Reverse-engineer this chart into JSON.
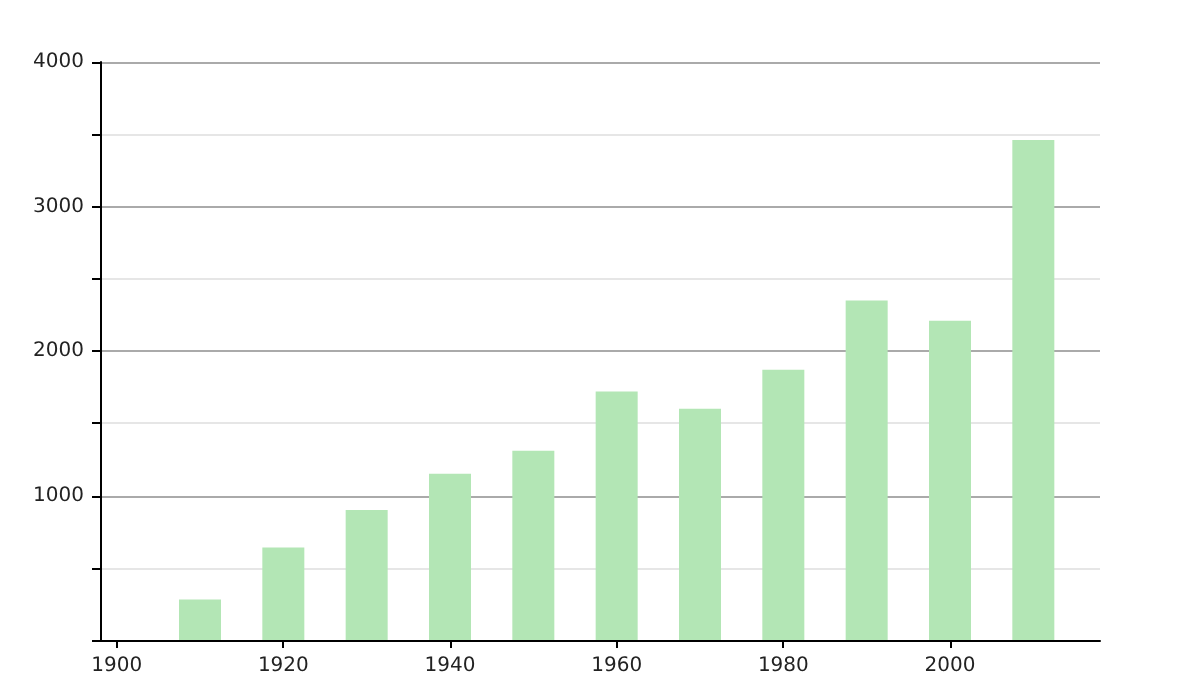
{
  "chart_data": {
    "type": "bar",
    "x": [
      1910,
      1920,
      1930,
      1940,
      1950,
      1960,
      1970,
      1980,
      1990,
      2000,
      2010
    ],
    "values": [
      280,
      640,
      900,
      1150,
      1310,
      1720,
      1600,
      1870,
      2350,
      2210,
      3460
    ],
    "color": "#b3e6b5",
    "xlim": [
      1898,
      2018
    ],
    "xticks": [
      1900,
      1920,
      1940,
      1960,
      1980,
      2000
    ],
    "ylim": [
      0,
      4000
    ],
    "yticks": [
      {
        "value": 0,
        "label": null
      },
      {
        "value": 500,
        "label": null
      },
      1000,
      {
        "value": 1500,
        "label": null
      },
      2000,
      {
        "value": 2500,
        "label": null
      },
      3000,
      {
        "value": 3500,
        "label": null
      },
      4000
    ],
    "grid": "y"
  }
}
